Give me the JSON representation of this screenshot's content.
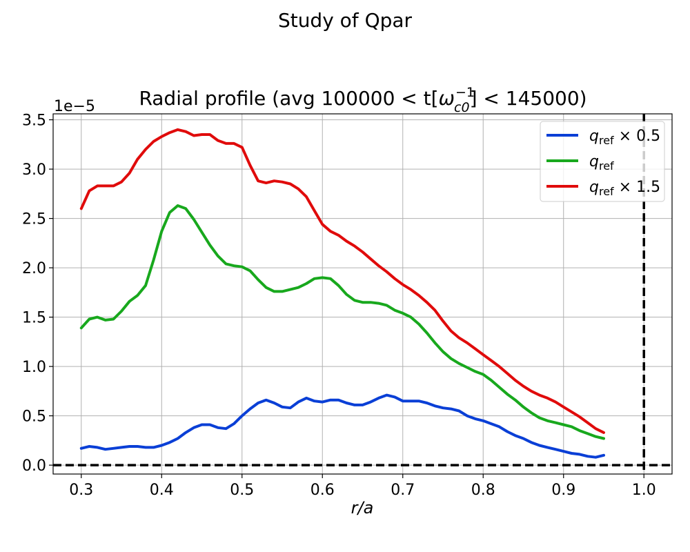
{
  "figure": {
    "suptitle": "Study of Qpar"
  },
  "chart_data": {
    "type": "line",
    "title": {
      "prefix": "Radial profile (avg 100000 < t[",
      "omega": "ω",
      "omega_sub": "c0",
      "omega_sup": "−1",
      "suffix": "] < 145000)"
    },
    "xlabel": "r/a",
    "ylabel": "",
    "offset_text": "1e−5",
    "xlim": [
      0.265,
      1.035
    ],
    "ylim": [
      -0.09,
      3.56
    ],
    "xticks": [
      0.3,
      0.4,
      0.5,
      0.6,
      0.7,
      0.8,
      0.9,
      1.0
    ],
    "xtick_labels": [
      "0.3",
      "0.4",
      "0.5",
      "0.6",
      "0.7",
      "0.8",
      "0.9",
      "1.0"
    ],
    "yticks": [
      0.0,
      0.5,
      1.0,
      1.5,
      2.0,
      2.5,
      3.0,
      3.5
    ],
    "ytick_labels": [
      "0.0",
      "0.5",
      "1.0",
      "1.5",
      "2.0",
      "2.5",
      "3.0",
      "3.5"
    ],
    "y_scale_factor": 1e-05,
    "grid": true,
    "legend_position": "top-right",
    "reference_lines": [
      {
        "orientation": "horizontal",
        "value": 0.0,
        "style": "dashed",
        "color": "#000000"
      },
      {
        "orientation": "vertical",
        "value": 1.0,
        "style": "dashed",
        "color": "#000000"
      }
    ],
    "series": [
      {
        "name": "q_ref × 0.5",
        "legend": {
          "q": "q",
          "sub": "ref",
          "suffix": " × 0.5"
        },
        "color": "#0a3fd6",
        "x": [
          0.3,
          0.31,
          0.32,
          0.33,
          0.34,
          0.35,
          0.36,
          0.37,
          0.38,
          0.39,
          0.4,
          0.41,
          0.42,
          0.43,
          0.44,
          0.45,
          0.46,
          0.47,
          0.48,
          0.49,
          0.5,
          0.51,
          0.52,
          0.53,
          0.54,
          0.55,
          0.56,
          0.57,
          0.58,
          0.59,
          0.6,
          0.61,
          0.62,
          0.63,
          0.64,
          0.65,
          0.66,
          0.67,
          0.68,
          0.69,
          0.7,
          0.71,
          0.72,
          0.73,
          0.74,
          0.75,
          0.76,
          0.77,
          0.78,
          0.79,
          0.8,
          0.81,
          0.82,
          0.83,
          0.84,
          0.85,
          0.86,
          0.87,
          0.88,
          0.89,
          0.9,
          0.91,
          0.92,
          0.93,
          0.94,
          0.95
        ],
        "y": [
          0.17,
          0.19,
          0.18,
          0.16,
          0.17,
          0.18,
          0.19,
          0.19,
          0.18,
          0.18,
          0.2,
          0.23,
          0.27,
          0.33,
          0.38,
          0.41,
          0.41,
          0.38,
          0.37,
          0.42,
          0.5,
          0.57,
          0.63,
          0.66,
          0.63,
          0.59,
          0.58,
          0.64,
          0.68,
          0.65,
          0.64,
          0.66,
          0.66,
          0.63,
          0.61,
          0.61,
          0.64,
          0.68,
          0.71,
          0.69,
          0.65,
          0.65,
          0.65,
          0.63,
          0.6,
          0.58,
          0.57,
          0.55,
          0.5,
          0.47,
          0.45,
          0.42,
          0.39,
          0.34,
          0.3,
          0.27,
          0.23,
          0.2,
          0.18,
          0.16,
          0.14,
          0.12,
          0.11,
          0.09,
          0.08,
          0.1
        ]
      },
      {
        "name": "q_ref",
        "legend": {
          "q": "q",
          "sub": "ref",
          "suffix": ""
        },
        "color": "#18a81d",
        "x": [
          0.3,
          0.31,
          0.32,
          0.33,
          0.34,
          0.35,
          0.36,
          0.37,
          0.38,
          0.39,
          0.4,
          0.41,
          0.42,
          0.43,
          0.44,
          0.45,
          0.46,
          0.47,
          0.48,
          0.49,
          0.5,
          0.51,
          0.52,
          0.53,
          0.54,
          0.55,
          0.56,
          0.57,
          0.58,
          0.59,
          0.6,
          0.61,
          0.62,
          0.63,
          0.64,
          0.65,
          0.66,
          0.67,
          0.68,
          0.69,
          0.7,
          0.71,
          0.72,
          0.73,
          0.74,
          0.75,
          0.76,
          0.77,
          0.78,
          0.79,
          0.8,
          0.81,
          0.82,
          0.83,
          0.84,
          0.85,
          0.86,
          0.87,
          0.88,
          0.89,
          0.9,
          0.91,
          0.92,
          0.93,
          0.94,
          0.95
        ],
        "y": [
          1.39,
          1.48,
          1.5,
          1.47,
          1.48,
          1.56,
          1.66,
          1.72,
          1.82,
          2.08,
          2.37,
          2.56,
          2.63,
          2.6,
          2.49,
          2.36,
          2.23,
          2.12,
          2.04,
          2.02,
          2.01,
          1.97,
          1.88,
          1.8,
          1.76,
          1.76,
          1.78,
          1.8,
          1.84,
          1.89,
          1.9,
          1.89,
          1.82,
          1.73,
          1.67,
          1.65,
          1.65,
          1.64,
          1.62,
          1.57,
          1.54,
          1.5,
          1.43,
          1.34,
          1.24,
          1.15,
          1.08,
          1.03,
          0.99,
          0.95,
          0.92,
          0.86,
          0.79,
          0.72,
          0.66,
          0.59,
          0.53,
          0.48,
          0.45,
          0.43,
          0.41,
          0.39,
          0.35,
          0.32,
          0.29,
          0.27
        ]
      },
      {
        "name": "q_ref × 1.5",
        "legend": {
          "q": "q",
          "sub": "ref",
          "suffix": " × 1.5"
        },
        "color": "#e00b0b",
        "x": [
          0.3,
          0.31,
          0.32,
          0.33,
          0.34,
          0.35,
          0.36,
          0.37,
          0.38,
          0.39,
          0.4,
          0.41,
          0.42,
          0.43,
          0.44,
          0.45,
          0.46,
          0.47,
          0.48,
          0.49,
          0.5,
          0.51,
          0.52,
          0.53,
          0.54,
          0.55,
          0.56,
          0.57,
          0.58,
          0.59,
          0.6,
          0.61,
          0.62,
          0.63,
          0.64,
          0.65,
          0.66,
          0.67,
          0.68,
          0.69,
          0.7,
          0.71,
          0.72,
          0.73,
          0.74,
          0.75,
          0.76,
          0.77,
          0.78,
          0.79,
          0.8,
          0.81,
          0.82,
          0.83,
          0.84,
          0.85,
          0.86,
          0.87,
          0.88,
          0.89,
          0.9,
          0.91,
          0.92,
          0.93,
          0.94,
          0.95
        ],
        "y": [
          2.6,
          2.78,
          2.83,
          2.83,
          2.83,
          2.87,
          2.96,
          3.1,
          3.2,
          3.28,
          3.33,
          3.37,
          3.4,
          3.38,
          3.34,
          3.35,
          3.35,
          3.29,
          3.26,
          3.26,
          3.22,
          3.04,
          2.88,
          2.86,
          2.88,
          2.87,
          2.85,
          2.8,
          2.72,
          2.58,
          2.44,
          2.37,
          2.33,
          2.27,
          2.22,
          2.16,
          2.09,
          2.02,
          1.96,
          1.89,
          1.83,
          1.78,
          1.72,
          1.65,
          1.57,
          1.46,
          1.36,
          1.29,
          1.24,
          1.18,
          1.12,
          1.06,
          1.0,
          0.93,
          0.86,
          0.8,
          0.75,
          0.71,
          0.68,
          0.64,
          0.59,
          0.54,
          0.49,
          0.43,
          0.37,
          0.33
        ]
      }
    ]
  }
}
